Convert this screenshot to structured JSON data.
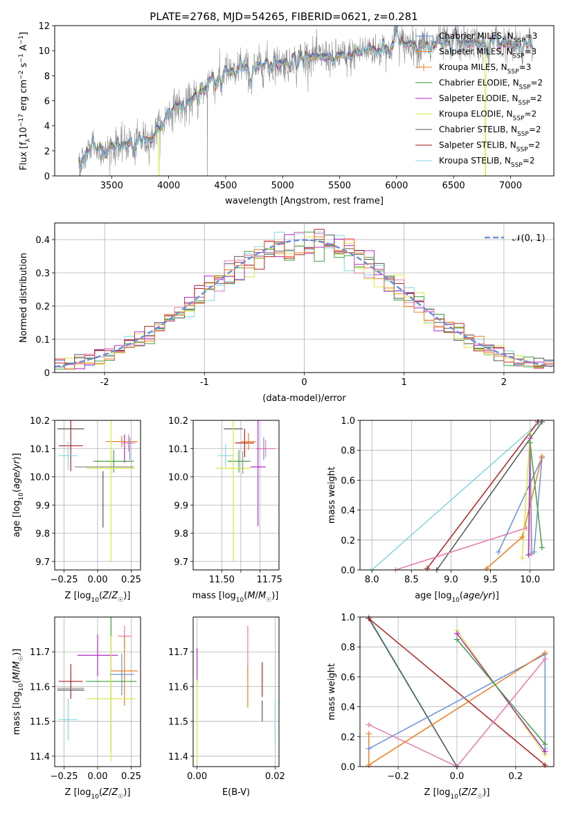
{
  "colors": [
    "#6a8fd8",
    "#f07c1e",
    "#8f8f8f",
    "#3e9e3e",
    "#b026c9",
    "#d7e63d",
    "#555555",
    "#b01e1e",
    "#7fd7e0",
    "#e678ac"
  ],
  "chart_data": [
    {
      "type": "line",
      "title": "PLATE=2768, MJD=54265, FIBERID=0621, z=0.281",
      "xlabel": "wavelength [Angstrom, rest frame]",
      "ylabel": "Flux [f_λ10^−17 erg cm^−2 s^−1 A^−1]",
      "xlim": [
        3000,
        7380
      ],
      "ylim": [
        0,
        12
      ],
      "xticks": [
        3500,
        4000,
        4500,
        5000,
        5500,
        6000,
        6500,
        7000
      ],
      "yticks": [
        0,
        2,
        4,
        6,
        8,
        10,
        12
      ],
      "grid": false,
      "legend_position": "top-right",
      "x_range_data": [
        3210,
        7200
      ],
      "continuum_anchors": [
        [
          3210,
          1.5
        ],
        [
          3350,
          2.3
        ],
        [
          3500,
          2.4
        ],
        [
          3700,
          2.6
        ],
        [
          3850,
          2.9
        ],
        [
          3950,
          4.0
        ],
        [
          4000,
          5.2
        ],
        [
          4200,
          6.2
        ],
        [
          4400,
          7.5
        ],
        [
          4600,
          8.6
        ],
        [
          5000,
          9.0
        ],
        [
          5200,
          9.5
        ],
        [
          5500,
          9.6
        ],
        [
          5800,
          10.0
        ],
        [
          6000,
          10.5
        ],
        [
          6500,
          10.6
        ],
        [
          7000,
          10.5
        ],
        [
          7200,
          10.0
        ]
      ],
      "series": [
        {
          "name": "Chabrier MILES, N",
          "sub": "SSP",
          "suffix": "=3",
          "color_index": 0,
          "style": "line"
        },
        {
          "name": "Salpeter MILES, N",
          "sub": "SSP",
          "suffix": "=3",
          "color_index": 1,
          "style": "line"
        },
        {
          "name": "Kroupa MILES, N",
          "sub": "SSP",
          "suffix": "=3",
          "color_index": 1,
          "style": "plus"
        },
        {
          "name": "Chabrier ELODIE, N",
          "sub": "SSP",
          "suffix": "=2",
          "color_index": 3,
          "style": "line"
        },
        {
          "name": "Salpeter ELODIE, N",
          "sub": "SSP",
          "suffix": "=2",
          "color_index": 4,
          "style": "line"
        },
        {
          "name": "Kroupa ELODIE, N",
          "sub": "SSP",
          "suffix": "=2",
          "color_index": 5,
          "style": "line"
        },
        {
          "name": "Chabrier STELIB, N",
          "sub": "SSP",
          "suffix": "=2",
          "color_index": 6,
          "style": "line"
        },
        {
          "name": "Salpeter STELIB, N",
          "sub": "SSP",
          "suffix": "=2",
          "color_index": 7,
          "style": "line"
        },
        {
          "name": "Kroupa STELIB, N",
          "sub": "SSP",
          "suffix": "=2",
          "color_index": 8,
          "style": "line"
        }
      ]
    },
    {
      "type": "histogram",
      "xlabel": "(data-model)/error",
      "ylabel": "Normed distribution",
      "xlim": [
        -2.5,
        2.5
      ],
      "ylim": [
        0,
        0.45
      ],
      "xticks": [
        -2,
        -1,
        0,
        1,
        2
      ],
      "yticks": [
        0.0,
        0.1,
        0.2,
        0.3,
        0.4
      ],
      "grid": true,
      "bin_width": 0.1,
      "legend_position": "top-right",
      "legend": [
        "𝒩(0, 1)"
      ],
      "reference_curve": {
        "mean": 0,
        "sigma": 1,
        "color_index": 0
      }
    },
    {
      "type": "errorbar",
      "xlabel": "Z [log10(Z/Z☉)]",
      "ylabel": "age  [log10(age/yr)]",
      "xlim": [
        -0.32,
        0.32
      ],
      "ylim": [
        9.67,
        10.2
      ],
      "xticks": [
        -0.25,
        0.0,
        0.25
      ],
      "xticklabels": [
        "−0.25",
        "0.00",
        "0.25"
      ],
      "yticks": [
        9.7,
        9.8,
        9.9,
        10.0,
        10.1,
        10.2
      ],
      "yticklabels": [
        "9.7",
        "9.8",
        "9.9",
        "10.0",
        "10.1",
        "10.2"
      ],
      "grid": true,
      "points": [
        {
          "c": 6,
          "x": -0.2,
          "xe": 0.1,
          "y": 10.17,
          "ye": 0.0
        },
        {
          "c": 7,
          "x": -0.2,
          "xe": 0.09,
          "y": 10.11,
          "ye": 0.09
        },
        {
          "c": 8,
          "x": -0.22,
          "xe": 0.07,
          "y": 10.075,
          "ye": 0.05
        },
        {
          "c": 1,
          "x": 0.18,
          "xe": 0.12,
          "y": 10.125,
          "ye": 0.02
        },
        {
          "c": 9,
          "x": 0.23,
          "xe": 0.05,
          "y": 10.12,
          "ye": 0.03
        },
        {
          "c": 3,
          "x": 0.12,
          "xe": 0.15,
          "y": 10.055,
          "ye": 0.04
        },
        {
          "c": 5,
          "x": 0.1,
          "xe": 0.18,
          "y": 10.03,
          "ye": 0.33
        },
        {
          "c": 2,
          "x": 0.05,
          "xe": 0.22,
          "y": 10.035,
          "ye": 0.0
        },
        {
          "c": 4,
          "x": 0.2,
          "xe": 0.0,
          "y": 10.1,
          "ye": 0.05
        },
        {
          "c": 0,
          "x": 0.24,
          "xe": 0.0,
          "y": 10.1,
          "ye": 0.04
        },
        {
          "c": 6,
          "x": 0.04,
          "xe": 0.0,
          "y": 9.92,
          "ye": 0.1
        }
      ]
    },
    {
      "type": "errorbar",
      "xlabel": "mass [log10(M/M☉)]",
      "ylabel": "",
      "xlim": [
        11.35,
        11.8
      ],
      "ylim": [
        9.67,
        10.2
      ],
      "xticks": [
        11.5,
        11.6,
        11.7
      ],
      "xticklabels": [
        "11.50",
        "11.75"
      ],
      "xtick_label_values": [
        11.5,
        11.75
      ],
      "yticks": [
        9.7,
        9.8,
        9.9,
        10.0,
        10.1,
        10.2
      ],
      "yticklabels": [
        "9.7",
        "9.8",
        "9.9",
        "10.0",
        "10.1",
        "10.2"
      ],
      "grid": true,
      "points": [
        {
          "c": 6,
          "x": 11.56,
          "xe": 0.05,
          "y": 10.17,
          "ye": 0.0
        },
        {
          "c": 7,
          "x": 11.62,
          "xe": 0.05,
          "y": 10.12,
          "ye": 0.05
        },
        {
          "c": 1,
          "x": 11.64,
          "xe": 0.04,
          "y": 10.125,
          "ye": 0.03
        },
        {
          "c": 9,
          "x": 11.73,
          "xe": 0.05,
          "y": 10.1,
          "ye": 0.03
        },
        {
          "c": 8,
          "x": 11.52,
          "xe": 0.04,
          "y": 10.075,
          "ye": 0.04
        },
        {
          "c": 3,
          "x": 11.59,
          "xe": 0.06,
          "y": 10.055,
          "ye": 0.04
        },
        {
          "c": 5,
          "x": 11.56,
          "xe": 0.09,
          "y": 10.03,
          "ye": 0.33
        },
        {
          "c": 4,
          "x": 11.69,
          "xe": 0.04,
          "y": 10.035,
          "ye": 0.21
        },
        {
          "c": 0,
          "x": 11.72,
          "xe": 0.0,
          "y": 10.1,
          "ye": 0.04
        },
        {
          "c": 2,
          "x": 11.61,
          "xe": 0.0,
          "y": 10.05,
          "ye": 0.04
        }
      ]
    },
    {
      "type": "line",
      "xlabel": "age  [log10(age/yr)]",
      "ylabel": "mass weight",
      "xlim": [
        7.85,
        10.3
      ],
      "ylim": [
        0,
        1.0
      ],
      "xticks": [
        8.0,
        8.5,
        9.0,
        9.5,
        10.0
      ],
      "xticklabels": [
        "8.0",
        "8.5",
        "9.0",
        "9.5",
        "10.0"
      ],
      "yticks": [
        0.0,
        0.2,
        0.4,
        0.6,
        0.8,
        1.0
      ],
      "yticklabels": [
        "0.0",
        "0.2",
        "0.4",
        "0.6",
        "0.8",
        "1.0"
      ],
      "grid": true,
      "series": [
        {
          "c": 8,
          "x": [
            8.0,
            10.1
          ],
          "y": [
            0.0,
            0.98
          ]
        },
        {
          "c": 7,
          "x": [
            8.7,
            10.1
          ],
          "y": [
            0.01,
            0.99
          ]
        },
        {
          "c": 6,
          "x": [
            8.82,
            10.15
          ],
          "y": [
            0.0,
            0.99
          ]
        },
        {
          "c": 9,
          "x": [
            8.3,
            9.95
          ],
          "y": [
            0.0,
            0.28
          ]
        },
        {
          "c": 0,
          "x": [
            9.6,
            10.15,
            10.05
          ],
          "y": [
            0.12,
            0.75,
            0.12
          ]
        },
        {
          "c": 1,
          "x": [
            9.45,
            9.9,
            10.15
          ],
          "y": [
            0.01,
            0.22,
            0.76
          ]
        },
        {
          "c": 5,
          "x": [
            9.9,
            10.0
          ],
          "y": [
            0.08,
            0.91
          ]
        },
        {
          "c": 4,
          "x": [
            9.98,
            10.0
          ],
          "y": [
            0.1,
            0.88
          ]
        },
        {
          "c": 3,
          "x": [
            10.0,
            10.15
          ],
          "y": [
            0.85,
            0.15
          ]
        },
        {
          "c": 2,
          "x": [
            10.0,
            10.02
          ],
          "y": [
            0.9,
            0.11
          ]
        }
      ]
    },
    {
      "type": "errorbar",
      "xlabel": "Z [log10(Z/Z☉)]",
      "ylabel": "mass [log10(M/M☉)]",
      "xlim": [
        -0.32,
        0.32
      ],
      "ylim": [
        11.37,
        11.8
      ],
      "xticks": [
        -0.25,
        0.0,
        0.25
      ],
      "xticklabels": [
        "−0.25",
        "0.00",
        "0.25"
      ],
      "yticks": [
        11.4,
        11.5,
        11.6,
        11.7
      ],
      "yticklabels": [
        "11.4",
        "11.5",
        "11.6",
        "11.7"
      ],
      "grid": true,
      "points": [
        {
          "c": 7,
          "x": -0.2,
          "xe": 0.09,
          "y": 11.615,
          "ye": 0.05
        },
        {
          "c": 6,
          "x": -0.2,
          "xe": 0.1,
          "y": 11.59,
          "ye": 0.0
        },
        {
          "c": 8,
          "x": -0.22,
          "xe": 0.07,
          "y": 11.505,
          "ye": 0.06
        },
        {
          "c": 9,
          "x": 0.2,
          "xe": 0.05,
          "y": 11.745,
          "ye": 0.03
        },
        {
          "c": 4,
          "x": 0.0,
          "xe": 0.15,
          "y": 11.69,
          "ye": 0.06
        },
        {
          "c": 1,
          "x": 0.2,
          "xe": 0.1,
          "y": 11.645,
          "ye": 0.1
        },
        {
          "c": 0,
          "x": 0.18,
          "xe": 0.09,
          "y": 11.635,
          "ye": 0.06
        },
        {
          "c": 3,
          "x": 0.1,
          "xe": 0.19,
          "y": 11.615,
          "ye": 0.2
        },
        {
          "c": 5,
          "x": 0.1,
          "xe": 0.18,
          "y": 11.565,
          "ye": 0.18
        },
        {
          "c": 2,
          "x": -0.2,
          "xe": 0.1,
          "y": 11.595,
          "ye": 0.0
        }
      ]
    },
    {
      "type": "errorbar",
      "xlabel": "E(B-V)",
      "ylabel": "",
      "xlim": [
        -0.001,
        0.021
      ],
      "ylim": [
        11.37,
        11.8
      ],
      "xticks": [
        0.0,
        0.02
      ],
      "xticklabels": [
        "0.00",
        "0.02"
      ],
      "yticks": [
        11.4,
        11.5,
        11.6,
        11.7
      ],
      "yticklabels": [
        "11.4",
        "11.5",
        "11.6",
        "11.7"
      ],
      "grid": true,
      "points": [
        {
          "c": 4,
          "x": 0.0,
          "xe": 0.0,
          "y": 11.66,
          "ye": 0.05
        },
        {
          "c": 5,
          "x": 0.0,
          "xe": 0.0,
          "y": 11.5,
          "ye": 0.12
        },
        {
          "c": 9,
          "x": 0.013,
          "xe": 0.0,
          "y": 11.705,
          "ye": 0.07
        },
        {
          "c": 1,
          "x": 0.013,
          "xe": 0.0,
          "y": 11.6,
          "ye": 0.06
        },
        {
          "c": 7,
          "x": 0.0167,
          "xe": 0.0,
          "y": 11.62,
          "ye": 0.05
        },
        {
          "c": 6,
          "x": 0.0167,
          "xe": 0.0,
          "y": 11.53,
          "ye": 0.03
        },
        {
          "c": 8,
          "x": 0.02,
          "xe": 0.0,
          "y": 11.5,
          "ye": 0.06
        }
      ]
    },
    {
      "type": "line",
      "xlabel": "Z [log10(Z/Z☉)]",
      "ylabel": "mass weight",
      "xlim": [
        -0.33,
        0.33
      ],
      "ylim": [
        0,
        1.0
      ],
      "xticks": [
        -0.2,
        0.0,
        0.2
      ],
      "xticklabels": [
        "−0.2",
        "0.0",
        "0.2"
      ],
      "yticks": [
        0.0,
        0.2,
        0.4,
        0.6,
        0.8,
        1.0
      ],
      "yticklabels": [
        "0.0",
        "0.2",
        "0.4",
        "0.6",
        "0.8",
        "1.0"
      ],
      "grid": true,
      "series": [
        {
          "c": 8,
          "x": [
            -0.3,
            0.0
          ],
          "y": [
            1.0,
            0.0
          ]
        },
        {
          "c": 6,
          "x": [
            -0.3,
            0.0
          ],
          "y": [
            0.99,
            0.0
          ]
        },
        {
          "c": 7,
          "x": [
            -0.3,
            0.3
          ],
          "y": [
            0.99,
            0.01
          ]
        },
        {
          "c": 9,
          "x": [
            -0.3,
            0.0,
            0.3
          ],
          "y": [
            0.28,
            0.0,
            0.72
          ]
        },
        {
          "c": 0,
          "x": [
            -0.3,
            0.3,
            0.3
          ],
          "y": [
            0.12,
            0.75,
            0.12
          ]
        },
        {
          "c": 1,
          "x": [
            -0.3,
            -0.3,
            0.3
          ],
          "y": [
            0.22,
            0.01,
            0.76
          ]
        },
        {
          "c": 5,
          "x": [
            0.0,
            0.3
          ],
          "y": [
            0.91,
            0.08
          ]
        },
        {
          "c": 4,
          "x": [
            0.0,
            0.3
          ],
          "y": [
            0.89,
            0.1
          ]
        },
        {
          "c": 3,
          "x": [
            0.0,
            0.3
          ],
          "y": [
            0.85,
            0.15
          ]
        }
      ]
    }
  ]
}
